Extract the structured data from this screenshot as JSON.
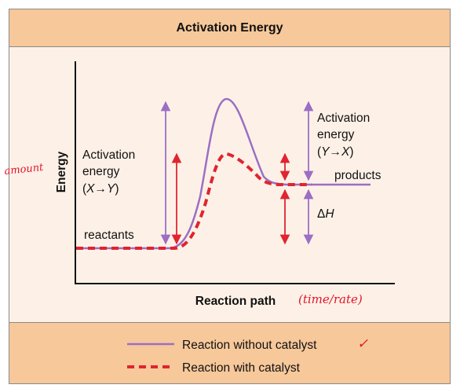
{
  "title": "Activation Energy",
  "y_axis_label": "Energy",
  "x_axis_label": "Reaction path",
  "reactants_label": "reactants",
  "products_label": "products",
  "activation_forward": {
    "line1": "Activation",
    "line2": "energy",
    "line3_open": "(",
    "line3_var1": "X",
    "line3_arrow": "→",
    "line3_var2": "Y",
    "line3_close": ")"
  },
  "activation_reverse": {
    "line1": "Activation",
    "line2": "energy",
    "line3_open": "(",
    "line3_var1": "Y",
    "line3_arrow": "→",
    "line3_var2": "X",
    "line3_close": ")"
  },
  "delta_h": {
    "symbol": "Δ",
    "var": "H"
  },
  "legend": {
    "without_catalyst": "Reaction without catalyst",
    "with_catalyst": "Reaction with catalyst"
  },
  "handwritten": {
    "amount": "amount",
    "time_rate": "(time/rate)",
    "check": "✓"
  },
  "colors": {
    "title_band": "#f7c89a",
    "panel": "#fdf1e7",
    "uncatalyzed_curve": "#9b6fc4",
    "catalyzed_curve": "#e02430",
    "handwriting": "#e0142b"
  }
}
